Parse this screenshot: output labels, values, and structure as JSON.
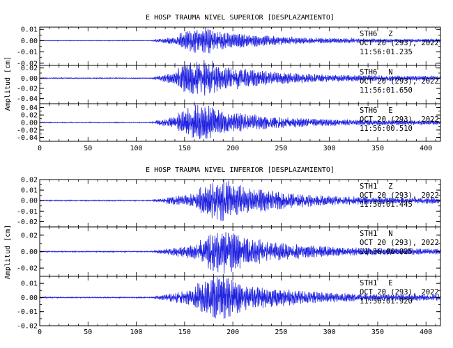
{
  "colors": {
    "trace": "#1f22e0",
    "axis": "#000000",
    "background": "#ffffff"
  },
  "chart_data": [
    {
      "type": "line",
      "title": "E HOSP TRAUMA NIVEL SUPERIOR [DESPLAZAMIENTO]",
      "ylabel": "Amplitud [cm]",
      "xlim": [
        0,
        415
      ],
      "xticks": [
        "0",
        "50",
        "100",
        "150",
        "200",
        "250",
        "300",
        "350",
        "400"
      ],
      "traces": [
        {
          "station": "STH6",
          "component": "Z",
          "date": "OCT 20 (293), 2022",
          "time": "11:56:01.235",
          "ylim": [
            -0.022,
            0.012
          ],
          "yticks": [
            0.01,
            0.0,
            -0.01,
            -0.02
          ],
          "ytick_labels": [
            "0.01",
            "0.00",
            "-0.01",
            "-0.02"
          ],
          "onset_s": 115,
          "peak_s": 170,
          "peak_amplitude": 0.011
        },
        {
          "station": "STH6",
          "component": "N",
          "date": "OCT 20 (293), 2022",
          "time": "11:56:01.650",
          "ylim": [
            -0.05,
            0.025
          ],
          "yticks": [
            0.02,
            0.0,
            -0.02,
            -0.04
          ],
          "ytick_labels": [
            "0.02",
            "0.00",
            "-0.02",
            "-0.04"
          ],
          "onset_s": 115,
          "peak_s": 168,
          "peak_amplitude": 0.035
        },
        {
          "station": "STH6",
          "component": "E",
          "date": "OCT 20 (293), 2022",
          "time": "11:56:00.510",
          "ylim": [
            -0.05,
            0.05
          ],
          "yticks": [
            0.04,
            0.02,
            0.0,
            -0.02,
            -0.04
          ],
          "ytick_labels": [
            "0.04",
            "0.02",
            "0.00",
            "-0.02",
            "-0.04"
          ],
          "onset_s": 115,
          "peak_s": 168,
          "peak_amplitude": 0.045
        }
      ]
    },
    {
      "type": "line",
      "title": "E HOSP TRAUMA NIVEL INFERIOR [DESPLAZAMIENTO]",
      "ylabel": "Amplitud [cm]",
      "xlim": [
        0,
        415
      ],
      "xticks": [
        "0",
        "50",
        "100",
        "150",
        "200",
        "250",
        "300",
        "350",
        "400"
      ],
      "traces": [
        {
          "station": "STH1",
          "component": "Z",
          "date": "OCT 20 (293), 2022",
          "time": "11:56:01.445",
          "ylim": [
            -0.025,
            0.02
          ],
          "yticks": [
            0.02,
            0.01,
            0.0,
            -0.01,
            -0.02
          ],
          "ytick_labels": [
            "0.02",
            "0.01",
            "0.00",
            "-0.01",
            "-0.02"
          ],
          "onset_s": 115,
          "peak_s": 190,
          "peak_amplitude": 0.019
        },
        {
          "station": "STH1",
          "component": "N",
          "date": "OCT 20 (293), 2022",
          "time": "11:56:00.825",
          "ylim": [
            -0.03,
            0.03
          ],
          "yticks": [
            0.02,
            0.0,
            -0.02
          ],
          "ytick_labels": [
            "0.02",
            "0.00",
            "-0.02"
          ],
          "onset_s": 115,
          "peak_s": 190,
          "peak_amplitude": 0.025
        },
        {
          "station": "STH1",
          "component": "E",
          "date": "OCT 20 (293), 2022",
          "time": "11:56:01.920",
          "ylim": [
            -0.02,
            0.015
          ],
          "yticks": [
            0.01,
            0.0,
            -0.01,
            -0.02
          ],
          "ytick_labels": [
            "0.01",
            "0.00",
            "-0.01",
            "-0.02"
          ],
          "onset_s": 115,
          "peak_s": 185,
          "peak_amplitude": 0.015
        }
      ]
    }
  ]
}
